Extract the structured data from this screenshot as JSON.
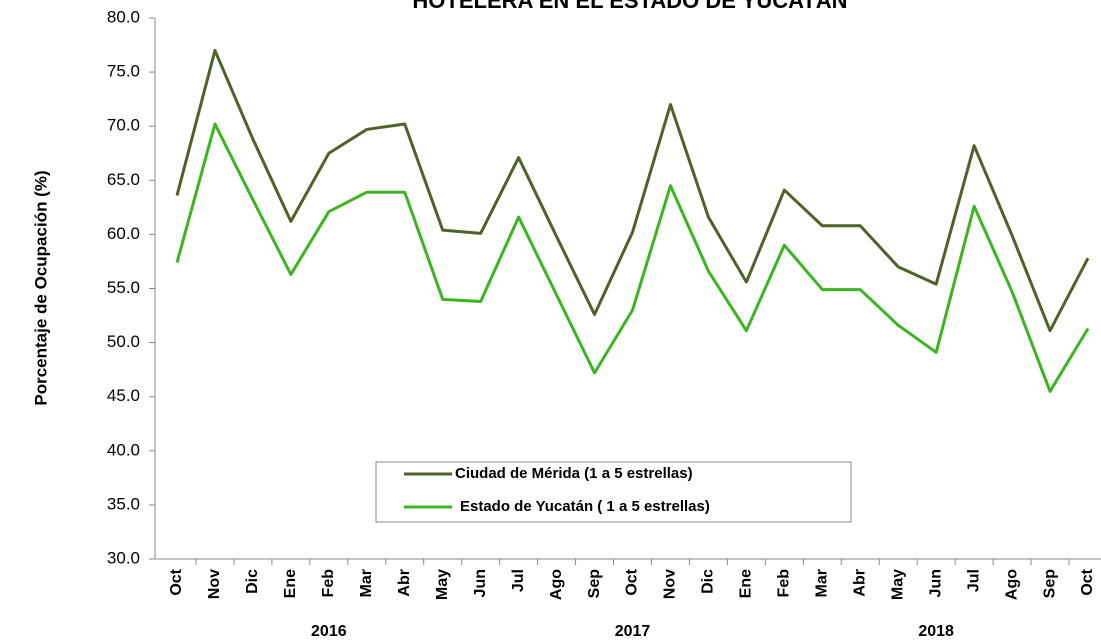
{
  "chart_data": {
    "type": "line",
    "title": "HOTELERA EN EL ESTADO DE YUCATÁN",
    "y_label": "Porcentaje de Ocupación (%)",
    "categories": [
      "Oct",
      "Nov",
      "Dic",
      "Ene",
      "Feb",
      "Mar",
      "Abr",
      "May",
      "Jun",
      "Jul",
      "Ago",
      "Sep",
      "Oct",
      "Nov",
      "Dic",
      "Ene",
      "Feb",
      "Mar",
      "Abr",
      "May",
      "Jun",
      "Jul",
      "Ago",
      "Sep",
      "Oct"
    ],
    "years": [
      "2016",
      "2017",
      "2018"
    ],
    "series": [
      {
        "name": "Ciudad de Mérida (1 a 5 estrellas)",
        "color": "#4f6228",
        "values": [
          63.6,
          77.0,
          68.8,
          61.2,
          67.5,
          69.7,
          70.2,
          60.4,
          60.1,
          67.1,
          59.8,
          52.6,
          60.2,
          72.0,
          61.6,
          55.6,
          64.1,
          60.8,
          60.8,
          57.0,
          55.4,
          68.2,
          59.9,
          51.1,
          57.8
        ]
      },
      {
        "name": "Estado de Yucatán ( 1 a 5 estrellas)",
        "color": "#3cb521",
        "values": [
          57.4,
          70.2,
          63.2,
          56.3,
          62.1,
          63.9,
          63.9,
          54.0,
          53.8,
          61.6,
          54.4,
          47.2,
          53.0,
          64.5,
          56.6,
          51.1,
          59.0,
          54.9,
          54.9,
          51.6,
          49.1,
          62.6,
          54.7,
          45.5,
          51.3
        ]
      }
    ],
    "ylim": [
      30,
      80
    ],
    "yticks": [
      {
        "value": 30,
        "label": "30.0"
      },
      {
        "value": 35,
        "label": "35.0"
      },
      {
        "value": 40,
        "label": "40.0"
      },
      {
        "value": 45,
        "label": "45.0"
      },
      {
        "value": 50,
        "label": "50.0"
      },
      {
        "value": 55,
        "label": "55.0"
      },
      {
        "value": 60,
        "label": "60.0"
      },
      {
        "value": 65,
        "label": "65.0"
      },
      {
        "value": 70,
        "label": "70.0"
      },
      {
        "value": 75,
        "label": "75.0"
      },
      {
        "value": 80,
        "label": "80.0"
      }
    ]
  }
}
